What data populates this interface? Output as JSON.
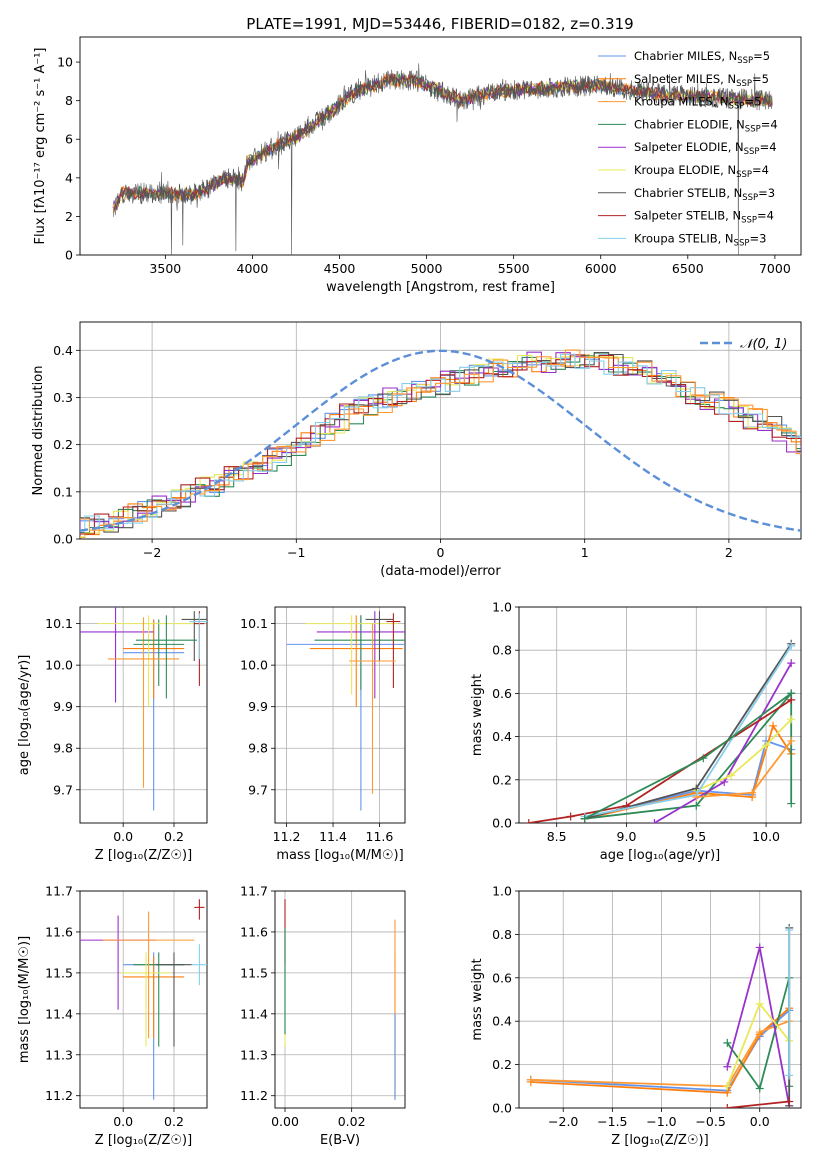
{
  "figure_title": "PLATE=1991, MJD=53446, FIBERID=0182, z=0.319",
  "palette": [
    "#6495ed",
    "#ff7f0e",
    "#ff9a33",
    "#2e8b57",
    "#9932cc",
    "#e8e858",
    "#555555",
    "#b22222",
    "#87ceeb"
  ],
  "chart_data": [
    {
      "type": "line",
      "name": "spectrum",
      "xlabel": "wavelength [Angstrom, rest frame]",
      "ylabel": "Flux [fλ10⁻¹⁷ erg cm⁻² s⁻¹ A⁻¹]",
      "xlim": [
        3010,
        7150
      ],
      "ylim": [
        0,
        11.3
      ],
      "xticks": [
        "3500",
        "4000",
        "4500",
        "5000",
        "5500",
        "6000",
        "6500",
        "7000"
      ],
      "yticks": [
        "0",
        "2",
        "4",
        "6",
        "8",
        "10"
      ],
      "legend_position": "right",
      "legend": [
        {
          "pre": "Chabrier MILES, N",
          "post": "=5"
        },
        {
          "pre": "Salpeter MILES, N",
          "post": "=5"
        },
        {
          "pre": "Kroupa MILES, N",
          "post": "=5"
        },
        {
          "pre": "Chabrier ELODIE, N",
          "post": "=4"
        },
        {
          "pre": "Salpeter ELODIE, N",
          "post": "=4"
        },
        {
          "pre": "Kroupa ELODIE, N",
          "post": "=4"
        },
        {
          "pre": "Chabrier STELIB, N",
          "post": "=3"
        },
        {
          "pre": "Salpeter STELIB, N",
          "post": "=4"
        },
        {
          "pre": "Kroupa STELIB, N",
          "post": "=3"
        }
      ],
      "legend_subscript": "SSP",
      "continuum": [
        [
          3200,
          2.4
        ],
        [
          3250,
          3.2
        ],
        [
          3500,
          3.2
        ],
        [
          3650,
          3.1
        ],
        [
          3750,
          3.5
        ],
        [
          3850,
          4.0
        ],
        [
          3950,
          3.8
        ],
        [
          3970,
          4.8
        ],
        [
          4100,
          5.5
        ],
        [
          4250,
          6.1
        ],
        [
          4400,
          7.1
        ],
        [
          4600,
          8.5
        ],
        [
          4800,
          9.1
        ],
        [
          4950,
          9.0
        ],
        [
          5050,
          8.6
        ],
        [
          5200,
          8.0
        ],
        [
          5400,
          8.5
        ],
        [
          5600,
          8.6
        ],
        [
          5800,
          8.7
        ],
        [
          6000,
          8.8
        ],
        [
          6200,
          8.5
        ],
        [
          6400,
          8.3
        ],
        [
          6600,
          8.2
        ],
        [
          6800,
          8.1
        ],
        [
          6980,
          8.0
        ]
      ],
      "absorption_features": [
        [
          3535,
          0
        ],
        [
          3600,
          0.5
        ],
        [
          3905,
          0.2
        ],
        [
          4225,
          0
        ],
        [
          5175,
          6.9
        ],
        [
          6545,
          7.8
        ],
        [
          6790,
          0
        ]
      ]
    },
    {
      "type": "area",
      "name": "residual-histogram",
      "xlabel": "(data-model)/error",
      "ylabel": "Normed distribution",
      "xlim": [
        -2.5,
        2.5
      ],
      "ylim": [
        0,
        0.46
      ],
      "xticks": [
        -2,
        -1,
        0,
        1,
        2
      ],
      "xtick_labels": [
        "−2",
        "−1",
        "0",
        "1",
        "2"
      ],
      "yticks": [
        0,
        0.1,
        0.2,
        0.3,
        0.4
      ],
      "ytick_labels": [
        "0.0",
        "0.1",
        "0.2",
        "0.3",
        "0.4"
      ],
      "grid": true,
      "reference": {
        "label": "𝒩(0, 1)",
        "mean": 0,
        "sigma": 1
      },
      "bin_width": 0.1,
      "base_heights": [
        0.024,
        0.028,
        0.035,
        0.045,
        0.055,
        0.065,
        0.07,
        0.085,
        0.1,
        0.11,
        0.12,
        0.135,
        0.145,
        0.16,
        0.175,
        0.19,
        0.205,
        0.225,
        0.245,
        0.265,
        0.28,
        0.29,
        0.3,
        0.31,
        0.315,
        0.325,
        0.335,
        0.345,
        0.35,
        0.36,
        0.365,
        0.37,
        0.375,
        0.375,
        0.38,
        0.38,
        0.375,
        0.37,
        0.365,
        0.36,
        0.35,
        0.335,
        0.32,
        0.305,
        0.29,
        0.28,
        0.27,
        0.255,
        0.24,
        0.22,
        0.2,
        0.185,
        0.165,
        0.145,
        0.13,
        0.115,
        0.1,
        0.09,
        0.08,
        0.075,
        0.07,
        0.065,
        0.06,
        0.055,
        0.05,
        0.045,
        0.04,
        0.035,
        0.03,
        0.028
      ]
    },
    {
      "type": "scatter",
      "name": "age-vs-metallicity",
      "xlabel": "Z [log₁₀(Z/Z☉)]",
      "ylabel": "age  [log₁₀(age/yr)]",
      "xlim": [
        -0.17,
        0.33
      ],
      "ylim": [
        9.62,
        10.14
      ],
      "xticks": [
        0,
        0.2
      ],
      "xtick_labels": [
        "0.0",
        "0.2"
      ],
      "yticks": [
        9.7,
        9.8,
        9.9,
        10.0,
        10.1
      ],
      "ytick_labels": [
        "9.7",
        "9.8",
        "9.9",
        "10.0",
        "10.1"
      ],
      "points": [
        {
          "x": 0.12,
          "y": 10.03,
          "xerr": 0.12,
          "yerr": [
            0.38,
            0.08
          ],
          "c": 0
        },
        {
          "x": 0.12,
          "y": 10.04,
          "xerr": 0.12,
          "yerr": [
            0.12,
            0.07
          ],
          "c": 1
        },
        {
          "x": 0.14,
          "y": 10.05,
          "xerr": 0.1,
          "yerr": [
            0.1,
            0.06
          ],
          "c": 3
        },
        {
          "x": -0.03,
          "y": 10.08,
          "xerr": 0.15,
          "yerr": [
            0.17,
            0.06
          ],
          "c": 4
        },
        {
          "x": 0.1,
          "y": 10.1,
          "xerr": 0.2,
          "yerr": [
            0.2,
            0.02
          ],
          "c": 5
        },
        {
          "x": 0.28,
          "y": 10.11,
          "xerr": 0.05,
          "yerr": [
            0.1,
            0.02
          ],
          "c": 6
        },
        {
          "x": 0.3,
          "y": 10.1,
          "xerr": 0.02,
          "yerr": [
            0.15,
            0.03
          ],
          "c": 7
        },
        {
          "x": 0.3,
          "y": 10.105,
          "xerr": 0.04,
          "yerr": [
            0.09,
            0.02
          ],
          "c": 8
        },
        {
          "x": 0.08,
          "y": 10.015,
          "xerr": 0.14,
          "yerr": [
            0.31,
            0.1
          ],
          "c": 2
        },
        {
          "x": 0.17,
          "y": 10.06,
          "xerr": 0.12,
          "yerr": [
            0.14,
            0.06
          ],
          "c": 3
        }
      ]
    },
    {
      "type": "scatter",
      "name": "age-vs-mass",
      "xlabel": "mass [log₁₀(M/M☉)]",
      "ylabel": "",
      "xlim": [
        11.15,
        11.71
      ],
      "ylim": [
        9.62,
        10.14
      ],
      "xticks": [
        11.2,
        11.4,
        11.6
      ],
      "xtick_labels": [
        "11.2",
        "11.4",
        "11.6"
      ],
      "yticks": [
        9.7,
        9.8,
        9.9,
        10.0,
        10.1
      ],
      "ytick_labels": [
        "9.7",
        "9.8",
        "9.9",
        "10.0",
        "10.1"
      ],
      "points": [
        {
          "x": 11.52,
          "y": 10.05,
          "xerr": 0.32,
          "yerr": [
            0.4,
            0.07
          ],
          "c": 0
        },
        {
          "x": 11.5,
          "y": 10.04,
          "xerr": 0.2,
          "yerr": [
            0.14,
            0.08
          ],
          "c": 1
        },
        {
          "x": 11.52,
          "y": 10.06,
          "xerr": 0.2,
          "yerr": [
            0.12,
            0.06
          ],
          "c": 3
        },
        {
          "x": 11.58,
          "y": 10.08,
          "xerr": 0.25,
          "yerr": [
            0.16,
            0.05
          ],
          "c": 4
        },
        {
          "x": 11.48,
          "y": 10.1,
          "xerr": 0.2,
          "yerr": [
            0.17,
            0.02
          ],
          "c": 5
        },
        {
          "x": 11.6,
          "y": 10.11,
          "xerr": 0.06,
          "yerr": [
            0.1,
            0.02
          ],
          "c": 6
        },
        {
          "x": 11.66,
          "y": 10.105,
          "xerr": 0.03,
          "yerr": [
            0.16,
            0.02
          ],
          "c": 7
        },
        {
          "x": 11.57,
          "y": 10.01,
          "xerr": 0.1,
          "yerr": [
            0.32,
            0.09
          ],
          "c": 2
        }
      ]
    },
    {
      "type": "line",
      "name": "mass-weight-vs-age",
      "xlabel": "age  [log₁₀(age/yr)]",
      "ylabel": "mass weight",
      "xlim": [
        8.23,
        10.25
      ],
      "ylim": [
        0,
        1
      ],
      "xticks": [
        8.5,
        9.0,
        9.5,
        10.0
      ],
      "xtick_labels": [
        "8.5",
        "9.0",
        "9.5",
        "10.0"
      ],
      "yticks": [
        0,
        0.2,
        0.4,
        0.6,
        0.8,
        1.0
      ],
      "ytick_labels": [
        "0.0",
        "0.2",
        "0.4",
        "0.6",
        "0.8",
        "1.0"
      ],
      "grid": true,
      "series": [
        {
          "c": 0,
          "x": [
            8.7,
            9.5,
            9.9,
            10.0,
            10.18
          ],
          "y": [
            0.02,
            0.15,
            0.13,
            0.38,
            0.34
          ]
        },
        {
          "c": 1,
          "x": [
            8.7,
            9.5,
            9.9,
            10.05,
            10.18
          ],
          "y": [
            0.02,
            0.14,
            0.12,
            0.45,
            0.32
          ]
        },
        {
          "c": 3,
          "x": [
            8.7,
            9.5,
            10.18,
            10.18
          ],
          "y": [
            0.02,
            0.08,
            0.6,
            0.09
          ]
        },
        {
          "c": 4,
          "x": [
            9.2,
            9.7,
            10.18
          ],
          "y": [
            0.0,
            0.19,
            0.74
          ]
        },
        {
          "c": 5,
          "x": [
            9.5,
            9.75,
            10.0,
            10.18
          ],
          "y": [
            0.15,
            0.22,
            0.36,
            0.48
          ]
        },
        {
          "c": 6,
          "x": [
            8.7,
            9.5,
            10.18
          ],
          "y": [
            0.02,
            0.16,
            0.83
          ]
        },
        {
          "c": 7,
          "x": [
            8.3,
            8.6,
            9.0,
            10.18
          ],
          "y": [
            0.0,
            0.03,
            0.08,
            0.57
          ]
        },
        {
          "c": 8,
          "x": [
            8.7,
            9.5,
            10.18
          ],
          "y": [
            0.03,
            0.13,
            0.82
          ]
        },
        {
          "c": 2,
          "x": [
            9.5,
            9.9,
            10.18
          ],
          "y": [
            0.12,
            0.14,
            0.38
          ]
        },
        {
          "c": 3,
          "x": [
            8.7,
            9.55,
            10.18
          ],
          "y": [
            0.02,
            0.3,
            0.6
          ]
        }
      ]
    },
    {
      "type": "scatter",
      "name": "mass-vs-metallicity",
      "xlabel": "Z [log₁₀(Z/Z☉)]",
      "ylabel": "mass [log₁₀(M/M☉)]",
      "xlim": [
        -0.17,
        0.33
      ],
      "ylim": [
        11.17,
        11.7
      ],
      "xticks": [
        0,
        0.2
      ],
      "xtick_labels": [
        "0.0",
        "0.2"
      ],
      "yticks": [
        11.2,
        11.3,
        11.4,
        11.5,
        11.6,
        11.7
      ],
      "ytick_labels": [
        "11.2",
        "11.3",
        "11.4",
        "11.5",
        "11.6",
        "11.7"
      ],
      "points": [
        {
          "x": 0.12,
          "y": 11.52,
          "xerr": 0.12,
          "yerr": [
            0.33,
            0.03
          ],
          "c": 0
        },
        {
          "x": 0.12,
          "y": 11.49,
          "xerr": 0.12,
          "yerr": [
            0.15,
            0.05
          ],
          "c": 1
        },
        {
          "x": 0.14,
          "y": 11.52,
          "xerr": 0.1,
          "yerr": [
            0.2,
            0.03
          ],
          "c": 3
        },
        {
          "x": -0.02,
          "y": 11.58,
          "xerr": 0.15,
          "yerr": [
            0.17,
            0.06
          ],
          "c": 4
        },
        {
          "x": 0.09,
          "y": 11.5,
          "xerr": 0.1,
          "yerr": [
            0.18,
            0.05
          ],
          "c": 5
        },
        {
          "x": 0.2,
          "y": 11.52,
          "xerr": 0.07,
          "yerr": [
            0.2,
            0.03
          ],
          "c": 6
        },
        {
          "x": 0.3,
          "y": 11.66,
          "xerr": 0.02,
          "yerr": [
            0.03,
            0.02
          ],
          "c": 7
        },
        {
          "x": 0.3,
          "y": 11.52,
          "xerr": 0.03,
          "yerr": [
            0.05,
            0.05
          ],
          "c": 8
        },
        {
          "x": 0.1,
          "y": 11.58,
          "xerr": 0.18,
          "yerr": [
            0.24,
            0.07
          ],
          "c": 2
        }
      ]
    },
    {
      "type": "scatter",
      "name": "mass-vs-ebv",
      "xlabel": "E(B-V)",
      "ylabel": "",
      "xlim": [
        -0.003,
        0.036
      ],
      "ylim": [
        11.17,
        11.7
      ],
      "xticks": [
        0,
        0.02
      ],
      "xtick_labels": [
        "0.00",
        "0.02"
      ],
      "yticks": [
        11.2,
        11.3,
        11.4,
        11.5,
        11.6,
        11.7
      ],
      "ytick_labels": [
        "11.2",
        "11.3",
        "11.4",
        "11.5",
        "11.6",
        "11.7"
      ],
      "points": [
        {
          "x": 0.0,
          "y": 11.58,
          "xerr": 0,
          "yerr": [
            0.26,
            0.04
          ],
          "c": 5
        },
        {
          "x": 0.0,
          "y": 11.62,
          "xerr": 0,
          "yerr": [
            0.1,
            0.06
          ],
          "c": 7
        },
        {
          "x": 0.0,
          "y": 11.5,
          "xerr": 0,
          "yerr": [
            0.15,
            0.1
          ],
          "c": 8
        },
        {
          "x": 0.0,
          "y": 11.55,
          "xerr": 0,
          "yerr": [
            0.2,
            0.06
          ],
          "c": 3
        },
        {
          "x": 0.033,
          "y": 11.4,
          "xerr": 0,
          "yerr": [
            0.2,
            0.15
          ],
          "c": 1
        },
        {
          "x": 0.033,
          "y": 11.35,
          "xerr": 0,
          "yerr": [
            0.16,
            0.28
          ],
          "c": 2
        },
        {
          "x": 0.033,
          "y": 11.3,
          "xerr": 0,
          "yerr": [
            0.11,
            0.1
          ],
          "c": 0
        }
      ]
    },
    {
      "type": "line",
      "name": "mass-weight-vs-metallicity",
      "xlabel": "Z [log₁₀(Z/Z☉)]",
      "ylabel": "mass weight",
      "xlim": [
        -2.45,
        0.42
      ],
      "ylim": [
        0,
        1
      ],
      "xticks": [
        -2.0,
        -1.5,
        -1.0,
        -0.5,
        0.0
      ],
      "xtick_labels": [
        "−2.0",
        "−1.5",
        "−1.0",
        "−0.5",
        "0.0"
      ],
      "yticks": [
        0,
        0.2,
        0.4,
        0.6,
        0.8,
        1.0
      ],
      "ytick_labels": [
        "0.0",
        "0.2",
        "0.4",
        "0.6",
        "0.8",
        "1.0"
      ],
      "grid": true,
      "series": [
        {
          "c": 0,
          "x": [
            -2.33,
            -0.33,
            0.0,
            0.3
          ],
          "y": [
            0.13,
            0.08,
            0.33,
            0.45
          ]
        },
        {
          "c": 1,
          "x": [
            -2.33,
            -0.33,
            0.0,
            0.3
          ],
          "y": [
            0.12,
            0.07,
            0.34,
            0.46
          ]
        },
        {
          "c": 2,
          "x": [
            -2.33,
            -0.33,
            0.0,
            0.3
          ],
          "y": [
            0.13,
            0.1,
            0.35,
            0.4
          ]
        },
        {
          "c": 3,
          "x": [
            -0.33,
            0.0,
            0.3,
            0.3
          ],
          "y": [
            0.3,
            0.09,
            0.6,
            0.1
          ]
        },
        {
          "c": 4,
          "x": [
            -0.33,
            0.0,
            0.3
          ],
          "y": [
            0.19,
            0.74,
            0.01
          ]
        },
        {
          "c": 5,
          "x": [
            -0.33,
            0.0,
            0.3
          ],
          "y": [
            0.1,
            0.48,
            0.31
          ]
        },
        {
          "c": 6,
          "x": [
            0.3,
            0.3
          ],
          "y": [
            0.83,
            0.01
          ]
        },
        {
          "c": 7,
          "x": [
            -0.33,
            0.3
          ],
          "y": [
            0.0,
            0.03
          ]
        },
        {
          "c": 8,
          "x": [
            0.3,
            0.3
          ],
          "y": [
            0.82,
            0.15
          ]
        }
      ]
    }
  ]
}
